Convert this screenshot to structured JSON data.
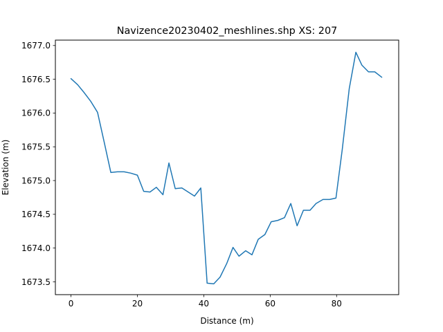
{
  "chart_data": {
    "type": "line",
    "title": "Navizence20230402_meshlines.shp XS: 207",
    "xlabel": "Distance (m)",
    "ylabel": "Elevation (m)",
    "xlim": [
      -4.7,
      98.7
    ],
    "ylim": [
      1673.31,
      1677.08
    ],
    "xticks": [
      0,
      20,
      40,
      60,
      80
    ],
    "xtick_labels": [
      "0",
      "20",
      "40",
      "60",
      "80"
    ],
    "yticks": [
      1673.5,
      1674.0,
      1674.5,
      1675.0,
      1675.5,
      1676.0,
      1676.5,
      1677.0
    ],
    "ytick_labels": [
      "1673.5",
      "1674.0",
      "1674.5",
      "1675.0",
      "1675.5",
      "1676.0",
      "1676.5",
      "1677.0"
    ],
    "grid": false,
    "series": [
      {
        "name": "cross-section",
        "color": "#1f77b4",
        "x": [
          0.0,
          2.0,
          4.0,
          6.0,
          8.0,
          10.0,
          12.0,
          14.0,
          16.0,
          18.0,
          20.0,
          21.9,
          23.8,
          25.7,
          27.7,
          29.5,
          31.4,
          33.4,
          35.3,
          37.2,
          39.1,
          41.0,
          43.0,
          44.9,
          46.9,
          48.8,
          50.6,
          52.6,
          54.5,
          56.4,
          58.4,
          60.3,
          62.3,
          64.3,
          66.2,
          68.1,
          70.0,
          72.0,
          73.8,
          75.9,
          77.9,
          79.8,
          81.7,
          83.8,
          85.8,
          87.6,
          89.6,
          91.5,
          93.6
        ],
        "y": [
          1676.51,
          1676.42,
          1676.3,
          1676.17,
          1676.01,
          1675.57,
          1675.12,
          1675.13,
          1675.13,
          1675.11,
          1675.08,
          1674.84,
          1674.83,
          1674.9,
          1674.79,
          1675.26,
          1674.88,
          1674.89,
          1674.83,
          1674.77,
          1674.89,
          1673.48,
          1673.47,
          1673.57,
          1673.77,
          1674.01,
          1673.88,
          1673.96,
          1673.9,
          1674.13,
          1674.2,
          1674.39,
          1674.41,
          1674.45,
          1674.66,
          1674.33,
          1674.56,
          1674.56,
          1674.66,
          1674.72,
          1674.72,
          1674.74,
          1675.46,
          1676.36,
          1676.9,
          1676.71,
          1676.61,
          1676.61,
          1676.53
        ]
      }
    ]
  }
}
